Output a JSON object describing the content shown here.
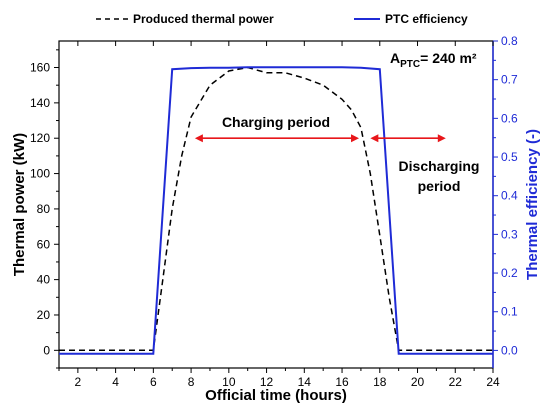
{
  "chart_data": {
    "type": "line",
    "xlabel": "Official time (hours)",
    "ylabel": "Thermal power (kW)",
    "y2label": "Thermal efficiency (-)",
    "xlim": [
      1,
      24
    ],
    "ylim": [
      -10,
      175
    ],
    "y2lim": [
      -0.0455,
      0.8
    ],
    "x_ticks": [
      "2",
      "4",
      "6",
      "8",
      "10",
      "12",
      "14",
      "16",
      "18",
      "20",
      "22",
      "24"
    ],
    "y_ticks": [
      "0",
      "20",
      "40",
      "60",
      "80",
      "100",
      "120",
      "140",
      "160"
    ],
    "y2_ticks": [
      "0.0",
      "0.1",
      "0.2",
      "0.3",
      "0.4",
      "0.5",
      "0.6",
      "0.7",
      "0.8"
    ],
    "legend_placement": "top",
    "series": [
      {
        "name": "Produced thermal power",
        "axis": "left",
        "color": "#000000",
        "style": "dashed",
        "x": [
          1,
          6,
          6.5,
          7,
          7.5,
          8,
          9,
          10,
          11,
          12,
          13,
          14,
          15,
          16,
          16.5,
          17,
          17.5,
          18,
          18.5,
          19,
          24
        ],
        "y": [
          0,
          0,
          40,
          80,
          110,
          132,
          150,
          158,
          160,
          157,
          157,
          154,
          150,
          142,
          136,
          126,
          100,
          65,
          30,
          0,
          0
        ]
      },
      {
        "name": "PTC efficiency",
        "axis": "right",
        "color": "#1f2bd6",
        "style": "solid",
        "x": [
          1,
          6,
          7,
          8,
          9,
          10,
          11,
          12,
          13,
          14,
          15,
          16,
          17,
          18,
          19,
          24
        ],
        "y": [
          -0.0085,
          -0.0085,
          0.727,
          0.73,
          0.731,
          0.731,
          0.732,
          0.732,
          0.732,
          0.732,
          0.732,
          0.732,
          0.731,
          0.727,
          -0.0085,
          -0.0085
        ]
      }
    ],
    "annotations": [
      {
        "id": "aptc",
        "text": "A",
        "sub": "PTC",
        "rest": "= 240 m²"
      },
      {
        "id": "charging",
        "text": "Charging period",
        "arrow_x": [
          8.2,
          16.9
        ],
        "arrow_y": 120
      },
      {
        "id": "discharging",
        "lines": [
          "Discharging",
          "period"
        ],
        "arrow_x": [
          17.5,
          21.5
        ],
        "arrow_y": 120
      }
    ],
    "colors": {
      "left_axis": "#000000",
      "right_axis": "#1f2bd6",
      "arrow": "#e8161a"
    }
  }
}
